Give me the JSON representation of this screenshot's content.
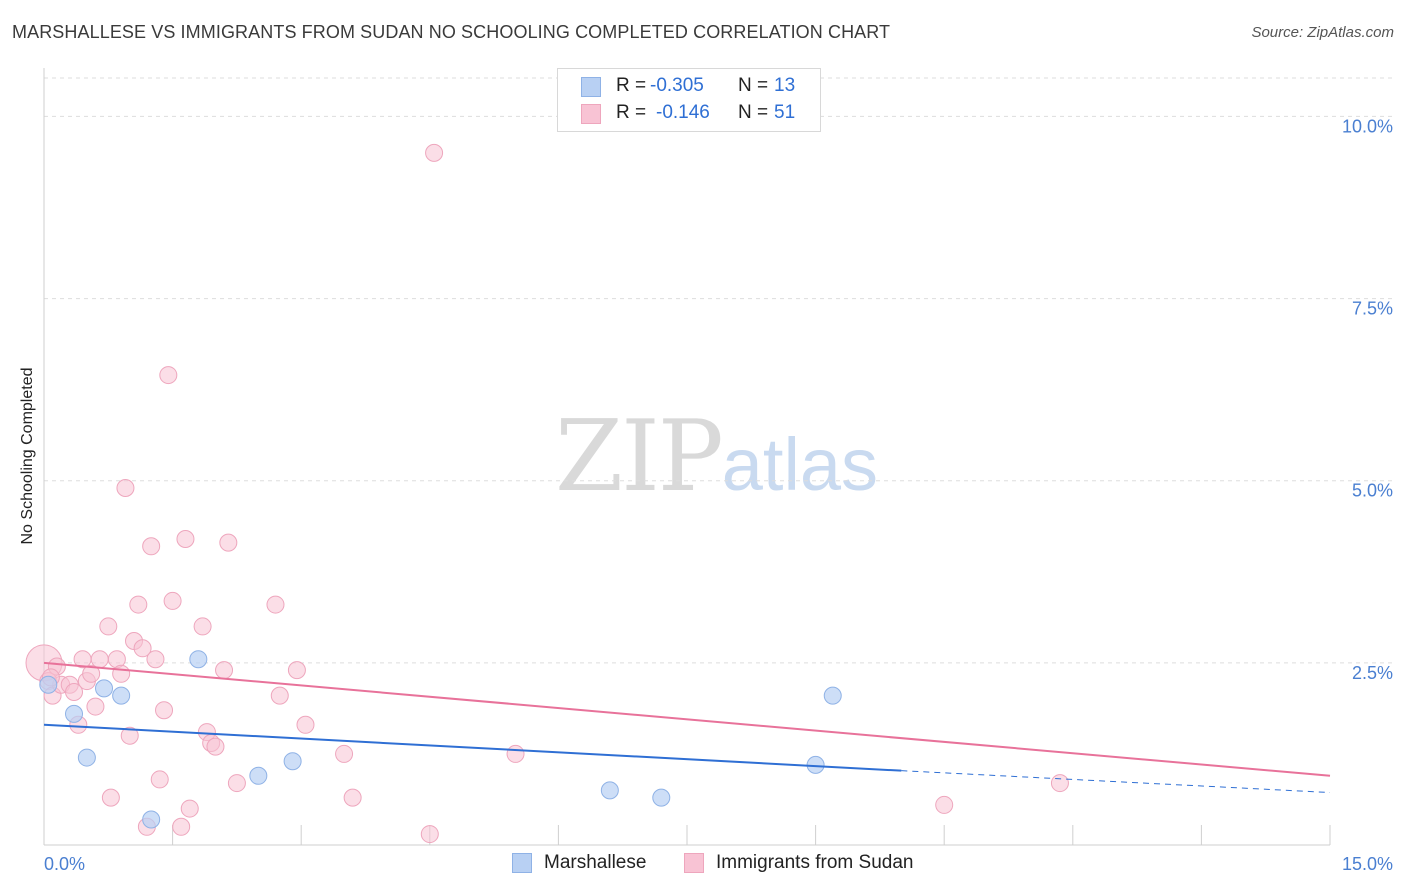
{
  "title": "MARSHALLESE VS IMMIGRANTS FROM SUDAN NO SCHOOLING COMPLETED CORRELATION CHART",
  "source": "Source: ZipAtlas.com",
  "watermark": {
    "zip": "ZIP",
    "atlas": "atlas"
  },
  "colors": {
    "blue_fill": "#b8d0f3",
    "blue_stroke": "#8fb2e6",
    "blue_line": "#2f6fd4",
    "pink_fill": "#f8c3d4",
    "pink_stroke": "#eea6bd",
    "pink_line": "#e8729a",
    "tick_text": "#4a7fd1",
    "grid": "#dddddd"
  },
  "legend": {
    "rows": [
      {
        "r_label": "R = ",
        "r_value": "-0.305",
        "n_label": "N = ",
        "n_value": "13"
      },
      {
        "r_label": "R = ",
        "r_value": "-0.146",
        "n_label": "N = ",
        "n_value": "51"
      }
    ]
  },
  "bottom_legend": {
    "series1": "Marshallese",
    "series2": "Immigrants from Sudan"
  },
  "chart_data": {
    "type": "scatter",
    "title": "MARSHALLESE VS IMMIGRANTS FROM SUDAN NO SCHOOLING COMPLETED CORRELATION CHART",
    "xlabel": "",
    "ylabel": "No Schooling Completed",
    "xlim": [
      0,
      15
    ],
    "ylim": [
      0,
      10.5
    ],
    "x_tick_labels": [
      "0.0%",
      "15.0%"
    ],
    "y_ticks": [
      2.5,
      5.0,
      7.5,
      10.0
    ],
    "y_tick_labels": [
      "2.5%",
      "5.0%",
      "7.5%",
      "10.0%"
    ],
    "grid": true,
    "legend_position": "top-center",
    "series": [
      {
        "name": "Marshallese",
        "r": -0.305,
        "n": 13,
        "points": [
          [
            0.05,
            2.2
          ],
          [
            0.35,
            1.8
          ],
          [
            0.5,
            1.2
          ],
          [
            0.7,
            2.15
          ],
          [
            0.9,
            2.05
          ],
          [
            1.25,
            0.35
          ],
          [
            1.8,
            2.55
          ],
          [
            2.5,
            0.95
          ],
          [
            2.9,
            1.15
          ],
          [
            6.6,
            0.75
          ],
          [
            7.2,
            0.65
          ],
          [
            9.0,
            1.1
          ],
          [
            9.2,
            2.05
          ]
        ],
        "trend": {
          "x": [
            0,
            10
          ],
          "y": [
            1.65,
            1.02
          ]
        },
        "trend_dashed": {
          "x": [
            10,
            15
          ],
          "y": [
            1.02,
            0.72
          ]
        }
      },
      {
        "name": "Immigrants from Sudan",
        "r": -0.146,
        "n": 51,
        "points": [
          [
            0.0,
            2.5
          ],
          [
            0.05,
            2.25
          ],
          [
            0.1,
            2.05
          ],
          [
            0.15,
            2.45
          ],
          [
            0.2,
            2.2
          ],
          [
            0.3,
            2.2
          ],
          [
            0.35,
            2.1
          ],
          [
            0.4,
            1.65
          ],
          [
            0.45,
            2.55
          ],
          [
            0.5,
            2.25
          ],
          [
            0.55,
            2.35
          ],
          [
            0.6,
            1.9
          ],
          [
            0.65,
            2.55
          ],
          [
            0.75,
            3.0
          ],
          [
            0.78,
            0.65
          ],
          [
            0.85,
            2.55
          ],
          [
            0.9,
            2.35
          ],
          [
            0.95,
            4.9
          ],
          [
            1.0,
            1.5
          ],
          [
            1.05,
            2.8
          ],
          [
            1.1,
            3.3
          ],
          [
            1.15,
            2.7
          ],
          [
            1.2,
            0.25
          ],
          [
            1.25,
            4.1
          ],
          [
            1.3,
            2.55
          ],
          [
            1.35,
            0.9
          ],
          [
            1.4,
            1.85
          ],
          [
            1.45,
            6.45
          ],
          [
            1.5,
            3.35
          ],
          [
            1.6,
            0.25
          ],
          [
            1.65,
            4.2
          ],
          [
            1.7,
            0.5
          ],
          [
            1.85,
            3.0
          ],
          [
            1.9,
            1.55
          ],
          [
            1.95,
            1.4
          ],
          [
            2.0,
            1.35
          ],
          [
            2.1,
            2.4
          ],
          [
            2.15,
            4.15
          ],
          [
            2.25,
            0.85
          ],
          [
            2.7,
            3.3
          ],
          [
            2.75,
            2.05
          ],
          [
            2.95,
            2.4
          ],
          [
            3.05,
            1.65
          ],
          [
            3.5,
            1.25
          ],
          [
            3.6,
            0.65
          ],
          [
            4.5,
            0.15
          ],
          [
            4.55,
            9.5
          ],
          [
            5.5,
            1.25
          ],
          [
            10.5,
            0.55
          ],
          [
            11.85,
            0.85
          ],
          [
            0.08,
            2.3
          ]
        ],
        "trend": {
          "x": [
            0,
            15
          ],
          "y": [
            2.5,
            0.95
          ]
        }
      }
    ]
  }
}
